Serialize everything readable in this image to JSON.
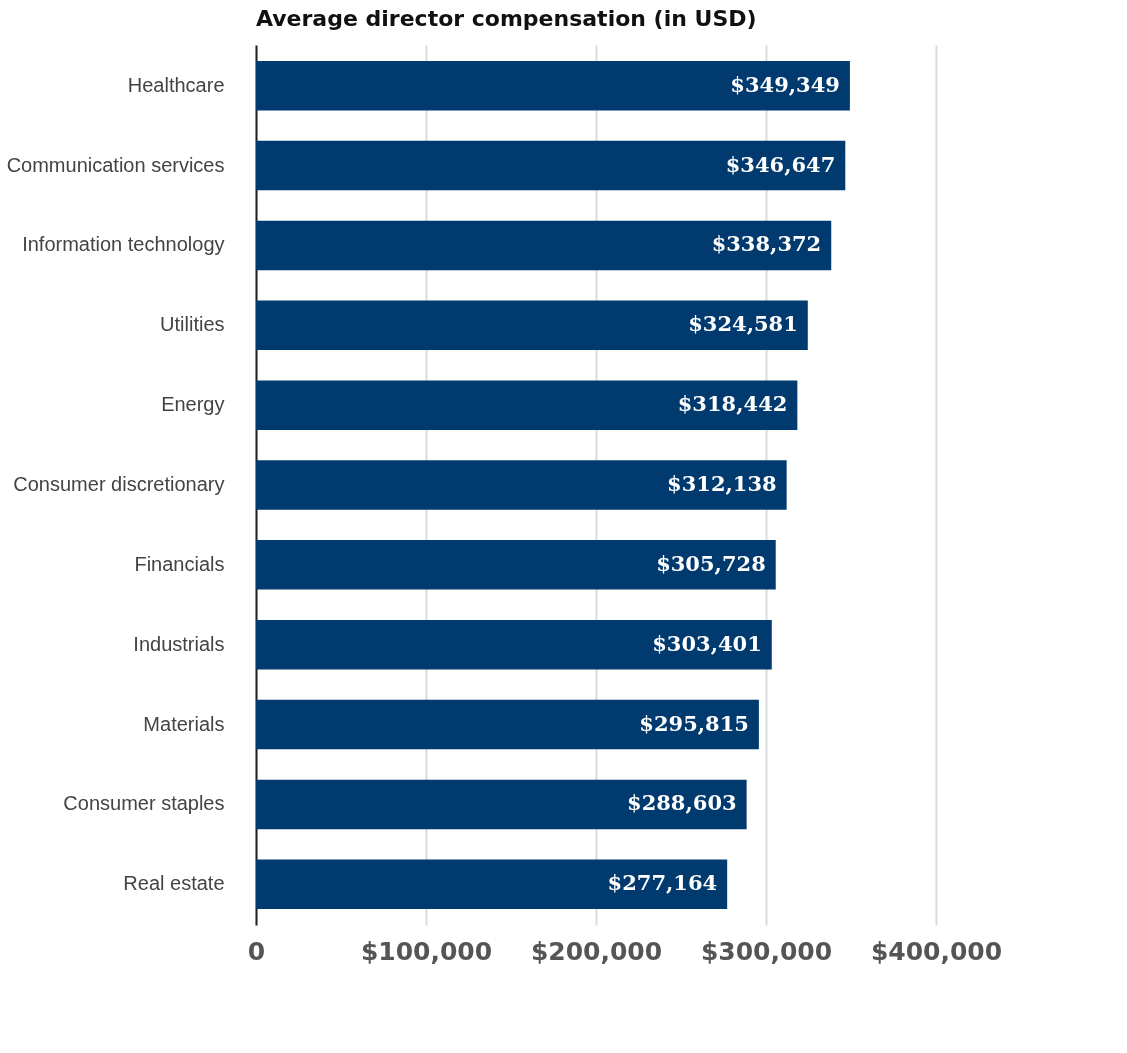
{
  "chart_data": {
    "type": "bar",
    "orientation": "horizontal",
    "title": "Average director compensation (in USD)",
    "categories": [
      "Healthcare",
      "Communication services",
      "Information technology",
      "Utilities",
      "Energy",
      "Consumer discretionary",
      "Financials",
      "Industrials",
      "Materials",
      "Consumer staples",
      "Real estate"
    ],
    "values": [
      349349,
      346647,
      338372,
      324581,
      318442,
      312138,
      305728,
      303401,
      295815,
      288603,
      277164
    ],
    "value_labels": [
      "$349,349",
      "$346,647",
      "$338,372",
      "$324,581",
      "$318,442",
      "$312,138",
      "$305,728",
      "$303,401",
      "$295,815",
      "$288,603",
      "$277,164"
    ],
    "color": "#003a6e",
    "xlim": [
      0,
      400000
    ],
    "xticks": [
      {
        "value": 0,
        "label": "0"
      },
      {
        "value": 100000,
        "label": "$100,000"
      },
      {
        "value": 200000,
        "label": "$200,000"
      },
      {
        "value": 300000,
        "label": "$300,000"
      },
      {
        "value": 400000,
        "label": "$400,000"
      }
    ],
    "grid": "x"
  }
}
